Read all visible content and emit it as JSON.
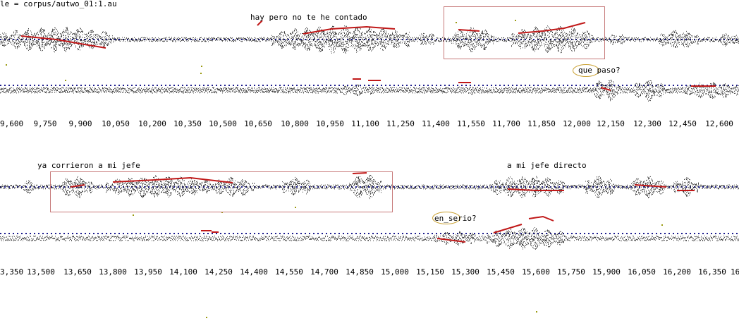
{
  "file_label": "le = corpus/autwo_01:1.au",
  "colors": {
    "pitch": "#c01818",
    "selection": "#c77a7a",
    "highlight": "#c9a030",
    "baseline": "#1a1a8c",
    "wave": "#000000",
    "marker": "#9a9a10"
  },
  "rows": [
    {
      "utterance_top": "hay pero no te he contado",
      "utterance_bottom": "que paso?",
      "ticks": [
        "9,600",
        "9,750",
        "9,900",
        "10,050",
        "10,200",
        "10,350",
        "10,500",
        "10,650",
        "10,800",
        "10,950",
        "11,100",
        "11,250",
        "11,400",
        "11,550",
        "11,700",
        "11,850",
        "12,000",
        "12,150",
        "12,300",
        "12,450",
        "12,600"
      ]
    },
    {
      "utterance_top_a": "ya corrieron a mi jefe",
      "utterance_top_b": "a mi jefe directo",
      "utterance_bottom": "en_serio?",
      "ticks": [
        "3,350",
        "13,500",
        "13,650",
        "13,800",
        "13,950",
        "14,100",
        "14,250",
        "14,400",
        "14,550",
        "14,700",
        "14,850",
        "15,000",
        "15,150",
        "15,300",
        "15,450",
        "15,600",
        "15,750",
        "15,900",
        "16,050",
        "16,200",
        "16,350",
        "16"
      ]
    }
  ]
}
